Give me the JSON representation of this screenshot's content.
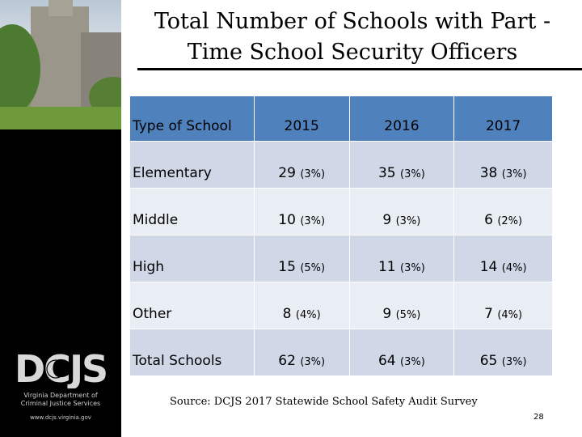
{
  "title": "Total Number of Schools with Part -Time School Security Officers",
  "logo": {
    "text": "DCJS"
  },
  "agency": {
    "line1": "Virginia Department of",
    "line2": "Criminal Justice Services",
    "website": "www.dcjs.virginia.gov"
  },
  "table": {
    "headers": [
      "Type of School",
      "2015",
      "2016",
      "2017"
    ],
    "rows": [
      {
        "type": "Elementary",
        "cells": [
          {
            "n": "29",
            "p": "(3%)"
          },
          {
            "n": "35",
            "p": "(3%)"
          },
          {
            "n": "38",
            "p": "(3%)"
          }
        ]
      },
      {
        "type": "Middle",
        "cells": [
          {
            "n": "10",
            "p": "(3%)"
          },
          {
            "n": "9",
            "p": "(3%)"
          },
          {
            "n": "6",
            "p": "(2%)"
          }
        ]
      },
      {
        "type": "High",
        "cells": [
          {
            "n": "15",
            "p": "(5%)"
          },
          {
            "n": "11",
            "p": "(3%)"
          },
          {
            "n": "14",
            "p": "(4%)"
          }
        ]
      },
      {
        "type": "Other",
        "cells": [
          {
            "n": "8",
            "p": "(4%)"
          },
          {
            "n": "9",
            "p": "(5%)"
          },
          {
            "n": "7",
            "p": "(4%)"
          }
        ]
      },
      {
        "type": "Total Schools",
        "cells": [
          {
            "n": "62",
            "p": "(3%)"
          },
          {
            "n": "64",
            "p": "(3%)"
          },
          {
            "n": "65",
            "p": "(3%)"
          }
        ]
      }
    ]
  },
  "source": "Source: DCJS 2017 Statewide School Safety Audit Survey",
  "page_number": "28"
}
